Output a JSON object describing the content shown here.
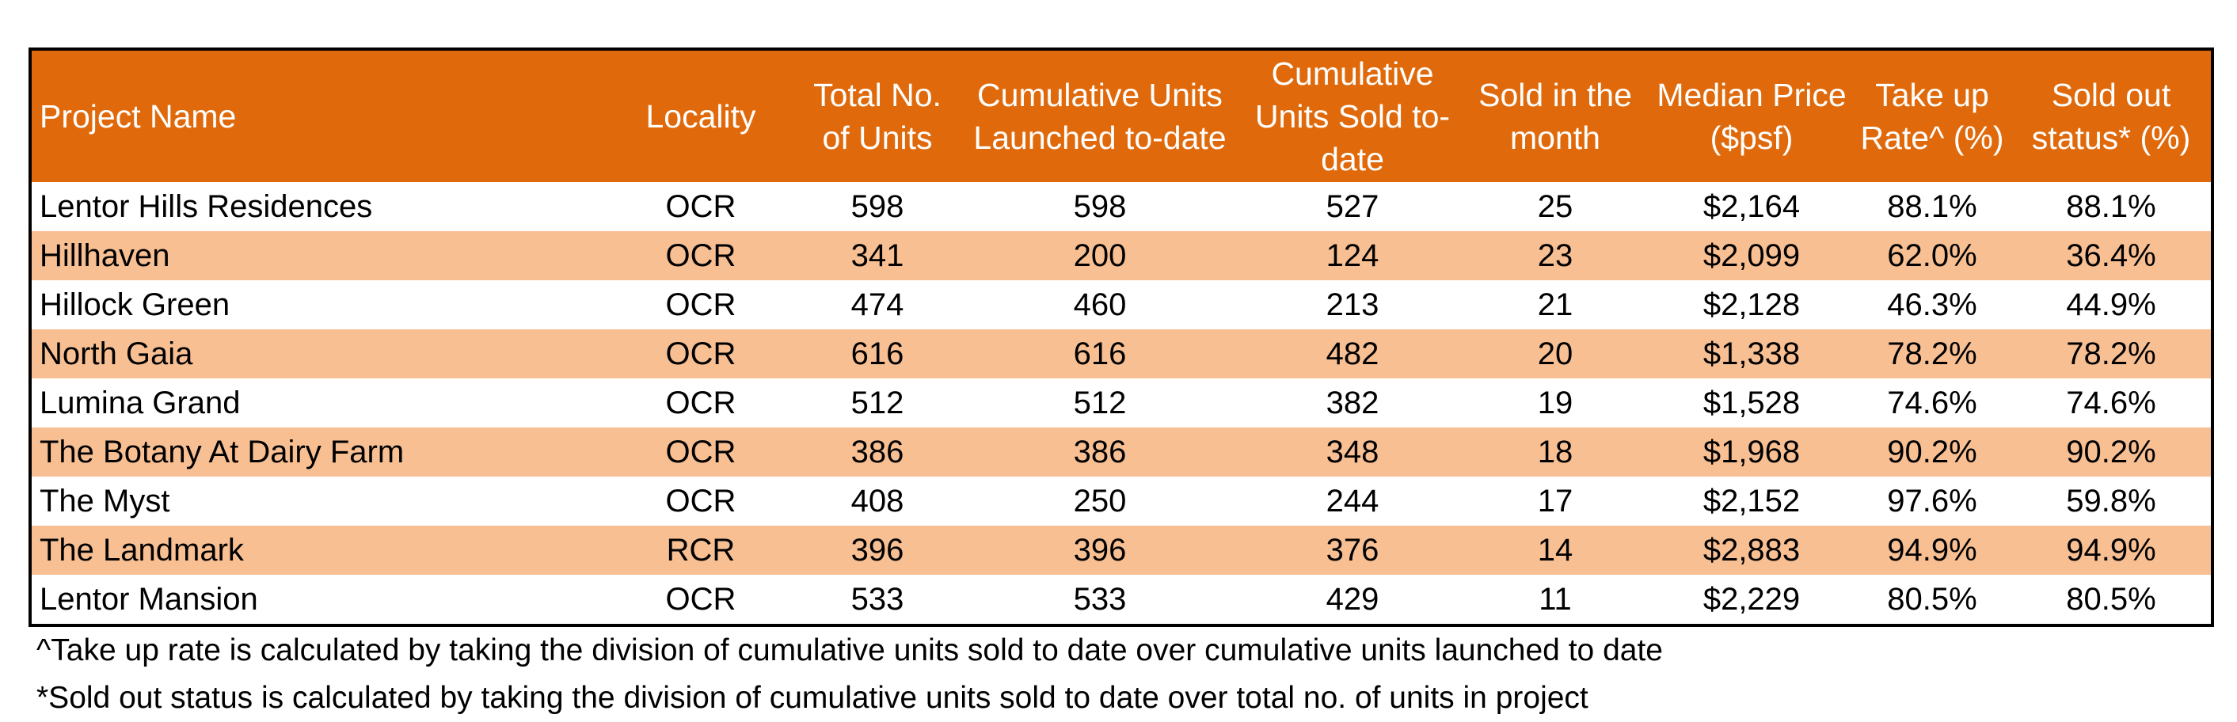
{
  "colors": {
    "header_bg": "#E06A0B",
    "header_text": "#FFFFFF",
    "stripe_bg": "#F8BF93",
    "plain_bg": "#FFFFFF",
    "border": "#000000"
  },
  "chart_data": {
    "type": "table",
    "title": "",
    "columns": [
      "Project Name",
      "Locality",
      "Total No. of Units",
      "Cumulative Units Launched to-date",
      "Cumulative Units Sold to-date",
      "Sold in the month",
      "Median Price ($psf)",
      "Take up Rate^ (%)",
      "Sold out status* (%)"
    ],
    "rows": [
      [
        "Lentor Hills Residences",
        "OCR",
        "598",
        "598",
        "527",
        "25",
        "$2,164",
        "88.1%",
        "88.1%"
      ],
      [
        "Hillhaven",
        "OCR",
        "341",
        "200",
        "124",
        "23",
        "$2,099",
        "62.0%",
        "36.4%"
      ],
      [
        "Hillock Green",
        "OCR",
        "474",
        "460",
        "213",
        "21",
        "$2,128",
        "46.3%",
        "44.9%"
      ],
      [
        "North Gaia",
        "OCR",
        "616",
        "616",
        "482",
        "20",
        "$1,338",
        "78.2%",
        "78.2%"
      ],
      [
        "Lumina Grand",
        "OCR",
        "512",
        "512",
        "382",
        "19",
        "$1,528",
        "74.6%",
        "74.6%"
      ],
      [
        "The Botany At Dairy Farm",
        "OCR",
        "386",
        "386",
        "348",
        "18",
        "$1,968",
        "90.2%",
        "90.2%"
      ],
      [
        "The Myst",
        "OCR",
        "408",
        "250",
        "244",
        "17",
        "$2,152",
        "97.6%",
        "59.8%"
      ],
      [
        "The Landmark",
        "RCR",
        "396",
        "396",
        "376",
        "14",
        "$2,883",
        "94.9%",
        "94.9%"
      ],
      [
        "Lentor Mansion",
        "OCR",
        "533",
        "533",
        "429",
        "11",
        "$2,229",
        "80.5%",
        "80.5%"
      ]
    ],
    "notes": [
      "^Take up rate is calculated by taking the division of cumulative units sold to date over cumulative units launched to date",
      "*Sold out status is calculated by taking the division of cumulative units sold to date over total no. of units in project"
    ]
  }
}
